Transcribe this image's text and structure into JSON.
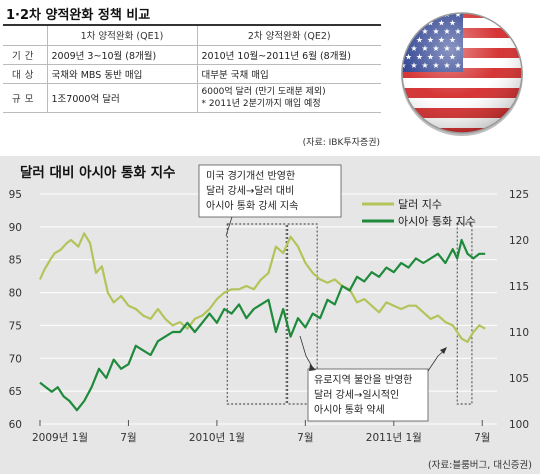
{
  "table": {
    "title": "1·2차 양적완화 정책 비교",
    "col1_header": "1차 양적완화 (QE1)",
    "col2_header": "2차 양적완화 (QE2)",
    "rows": [
      {
        "label": "기간",
        "qe1": "2009년 3~10월 (8개월)",
        "qe2_line1": "2010년 10월~2011년 6월 (8개월)",
        "qe2_line2": ""
      },
      {
        "label": "대상",
        "qe1": "국채와 MBS 동반 매입",
        "qe2_line1": "대부분 국채 매입",
        "qe2_line2": ""
      },
      {
        "label": "규모",
        "qe1": "1조7000억 달러",
        "qe2_line1": "6000억 달러 (만기 도래분 제외)",
        "qe2_line2": "* 2011년 2분기까지 매입 예정"
      }
    ],
    "source": "(자료: IBK투자증권)"
  },
  "colors": {
    "dollar_index": "#b3c45a",
    "asia_index": "#1f8a3b",
    "panel_bg": "#e6e6e6"
  },
  "chart_data": {
    "type": "line",
    "title": "달러 대비 아시아 통화 지수",
    "x_ticks": [
      "2009년 1월",
      "7월",
      "2010년 1월",
      "7월",
      "2011년 1월",
      "7월"
    ],
    "left_axis": {
      "ticks": [
        60,
        65,
        70,
        75,
        80,
        85,
        90,
        95
      ],
      "ylim": [
        60,
        95
      ]
    },
    "right_axis": {
      "ticks": [
        100,
        105,
        110,
        115,
        120,
        125
      ],
      "ylim": [
        100,
        125
      ]
    },
    "x_range": [
      0,
      31
    ],
    "legend": [
      "달러 지수",
      "아시아 통화 지수"
    ],
    "series": [
      {
        "name": "달러 지수",
        "axis": "left",
        "color": "#b3c45a",
        "x": [
          0,
          0.3,
          0.7,
          1.0,
          1.4,
          1.8,
          2.1,
          2.6,
          3.0,
          3.4,
          3.8,
          4.2,
          4.6,
          5.0,
          5.5,
          6.0,
          6.5,
          7.0,
          7.5,
          8.0,
          8.5,
          9.0,
          9.5,
          10.0,
          10.5,
          11.0,
          11.5,
          12.0,
          12.5,
          13.0,
          13.5,
          14.0,
          14.5,
          15.0,
          15.5,
          16.0,
          16.5,
          17.0,
          17.5,
          18.0,
          18.5,
          19.0,
          19.5,
          20.0,
          20.5,
          21.0,
          21.5,
          22.0,
          22.5,
          23.0,
          23.5,
          24.0,
          24.5,
          25.0,
          25.5,
          26.0,
          26.5,
          27.0,
          27.5,
          28.0,
          28.3,
          28.6,
          29.0,
          29.4,
          29.8,
          30.2
        ],
        "values": [
          82,
          83.5,
          85,
          86,
          86.5,
          87.5,
          88,
          87,
          89,
          87.5,
          83,
          84,
          80,
          78.5,
          79.5,
          78,
          77.5,
          76.5,
          76,
          77.5,
          76,
          75,
          75.5,
          74.5,
          76,
          76.5,
          77.5,
          79,
          80,
          80.5,
          80.5,
          81,
          80.5,
          82,
          83,
          87,
          86,
          88.5,
          87,
          84.5,
          83,
          82,
          81.5,
          82,
          81,
          80.5,
          78.5,
          79,
          78,
          77,
          78.5,
          78,
          77.5,
          78,
          78,
          77,
          76,
          76.5,
          75.5,
          75,
          74,
          73,
          72.5,
          74,
          75,
          74.5
        ]
      },
      {
        "name": "아시아 통화 지수",
        "axis": "right",
        "color": "#1f8a3b",
        "x": [
          0,
          0.4,
          0.8,
          1.2,
          1.6,
          2.0,
          2.5,
          3.0,
          3.5,
          4.0,
          4.5,
          5.0,
          5.5,
          6.0,
          6.5,
          7.0,
          7.5,
          8.0,
          8.5,
          9.0,
          9.5,
          10.0,
          10.5,
          11.0,
          11.5,
          12.0,
          12.5,
          13.0,
          13.5,
          14.0,
          14.5,
          15.0,
          15.5,
          16.0,
          16.5,
          17.0,
          17.5,
          18.0,
          18.5,
          19.0,
          19.5,
          20.0,
          20.5,
          21.0,
          21.5,
          22.0,
          22.5,
          23.0,
          23.5,
          24.0,
          24.5,
          25.0,
          25.5,
          26.0,
          26.5,
          27.0,
          27.5,
          28.0,
          28.3,
          28.6,
          29.0,
          29.4,
          29.8,
          30.2
        ],
        "values": [
          104.5,
          104,
          103.5,
          104,
          103,
          102.5,
          101.5,
          102.5,
          104,
          106,
          105,
          107,
          106,
          106.5,
          108.5,
          108,
          107.5,
          109,
          109.5,
          110,
          110,
          111,
          110,
          111,
          112,
          111,
          112.5,
          112,
          113,
          111.5,
          112.5,
          113,
          113.5,
          110,
          112.5,
          109.5,
          111.5,
          110.5,
          112,
          111.5,
          113.5,
          113,
          115,
          114.5,
          116,
          115.5,
          116.5,
          116,
          117,
          116.5,
          117.5,
          117,
          118,
          117.5,
          118,
          118.5,
          117.5,
          119,
          118,
          120,
          118.5,
          118,
          118.5,
          118.5
        ]
      }
    ],
    "annotations": [
      {
        "lines": [
          "미국 경기개선 반영한",
          "달러 강세→달러 대비",
          "아시아 통화 강세 지속"
        ]
      },
      {
        "lines": [
          "유로지역 불안을 반영한",
          "달러 강세→일시적인",
          "아시아 통화 약세"
        ]
      }
    ],
    "highlight_ranges": [
      [
        12.7,
        16.7
      ],
      [
        16.8,
        18.8
      ],
      [
        28.3,
        29.3
      ]
    ],
    "source": "(자료:블룸버그, 대신증권)"
  }
}
